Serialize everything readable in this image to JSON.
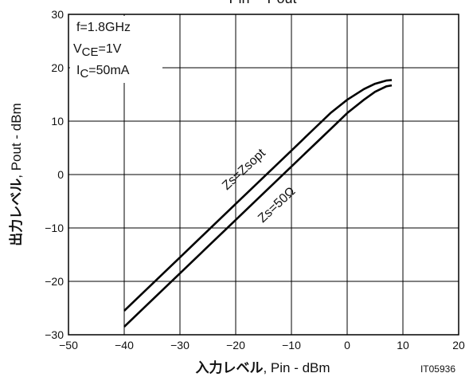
{
  "chart_data": {
    "type": "line",
    "title": "Pin -- Pout",
    "xlabel_jp": "入力レベル",
    "xlabel_en": ", Pin - dBm",
    "ylabel_jp": "出力レベル",
    "ylabel_en": ", Pout - dBm",
    "xlim": [
      -50,
      20
    ],
    "ylim": [
      -30,
      30
    ],
    "x_ticks": [
      -50,
      -40,
      -30,
      -20,
      -10,
      0,
      10,
      20
    ],
    "y_ticks": [
      -30,
      -20,
      -10,
      0,
      10,
      20,
      30
    ],
    "x_tick_labels": [
      "−50",
      "−40",
      "−30",
      "−20",
      "−10",
      "0",
      "10",
      "20"
    ],
    "y_tick_labels": [
      "−30",
      "−20",
      "−10",
      "0",
      "10",
      "20",
      "30"
    ],
    "grid": true,
    "conditions": [
      "f=1.8GHz",
      "VCE=1V",
      "IC=50mA"
    ],
    "series": [
      {
        "name": "Zs=Zsopt",
        "x": [
          -40,
          -30,
          -20,
          -10,
          -6,
          -3,
          0,
          3,
          5,
          7,
          8
        ],
        "y": [
          -25.5,
          -15.5,
          -5.5,
          4.5,
          8.5,
          11.5,
          14,
          16,
          17,
          17.6,
          17.7
        ]
      },
      {
        "name": "Zs=50Ω",
        "x": [
          -40,
          -30,
          -20,
          -10,
          -5,
          -2,
          0,
          3,
          5,
          7,
          8
        ],
        "y": [
          -28.5,
          -18.5,
          -8.5,
          1.5,
          6.5,
          9.5,
          11.5,
          14,
          15.5,
          16.5,
          16.7
        ]
      }
    ],
    "code_label": "IT05936"
  }
}
